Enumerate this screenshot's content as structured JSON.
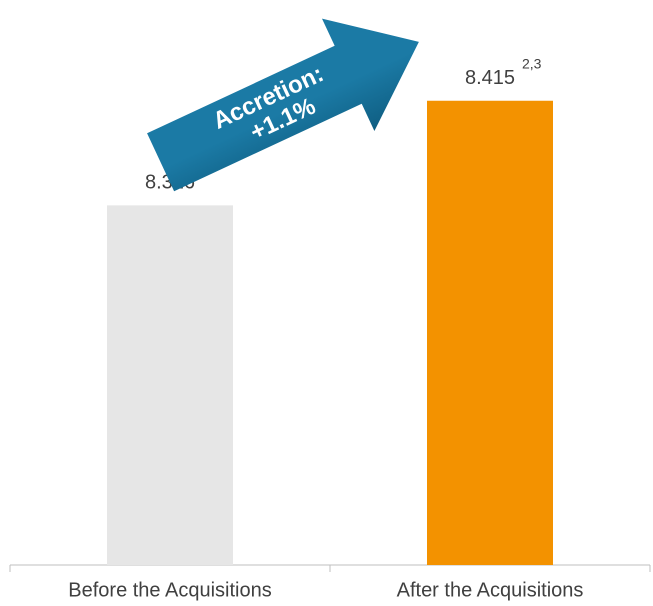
{
  "chart_data": {
    "type": "bar",
    "categories": [
      "Before the Acquisitions",
      "After the Acquisitions"
    ],
    "values": [
      8.326,
      8.415
    ],
    "colors": [
      "#e6e6e6",
      "#f39200"
    ],
    "ylim": [
      8.02,
      8.5
    ],
    "footnote": "2,3",
    "arrow_text": [
      "Accretion:",
      "+1.1%"
    ],
    "arrow_color": "#1b7aa5"
  }
}
